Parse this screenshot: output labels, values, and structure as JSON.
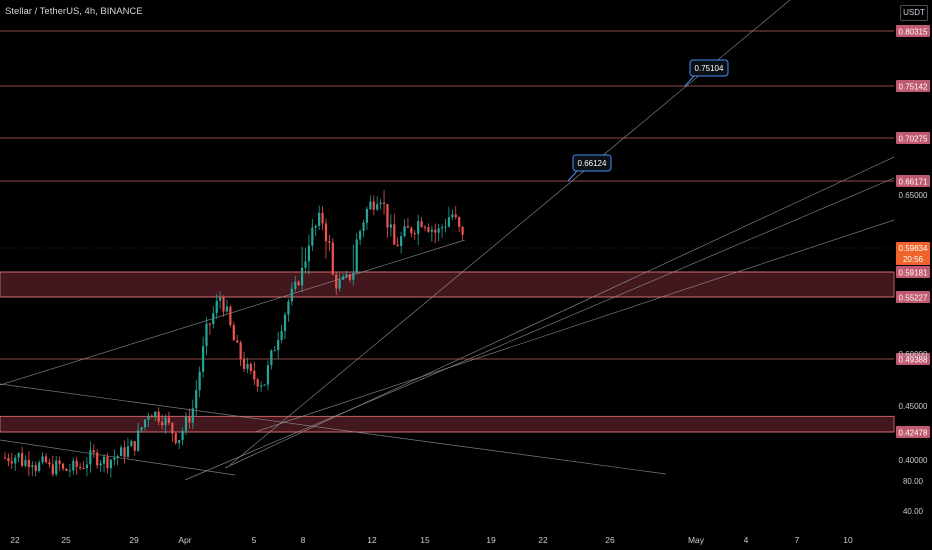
{
  "header": {
    "title": "Stellar / TetherUS, 4h, BINANCE",
    "unit": "USDT"
  },
  "colors": {
    "background": "#000000",
    "bull": "#26a69a",
    "bear": "#ef5350",
    "level_line": "#e57373",
    "zone_fill": "#5a1f28",
    "level_badge": "#c05a70",
    "current_badge": "#f0632a",
    "callout_border": "#4a8ef7",
    "trendline": "#9a9a9a"
  },
  "chart_data": {
    "type": "candlestick",
    "symbol": "Stellar / TetherUS",
    "interval": "4h",
    "exchange": "BINANCE",
    "quote": "USDT",
    "y_ticks": [
      "0.65000",
      "0.60000",
      "0.45000",
      "0.40000",
      "80.00",
      "40.00"
    ],
    "x_ticks": [
      "22",
      "25",
      "29",
      "Apr",
      "5",
      "8",
      "12",
      "15",
      "19",
      "22",
      "26",
      "May",
      "4",
      "7",
      "10"
    ],
    "horizontal_levels": [
      "0.80315",
      "0.75142",
      "0.70275",
      "0.66171",
      "0.59181",
      "0.55227",
      "0.49388",
      "0.42478"
    ],
    "zones": [
      {
        "from": 0.55227,
        "to": 0.59181
      },
      {
        "from": 0.42478,
        "to": 0.44
      }
    ],
    "current_price": "0.59834",
    "countdown": "20:56",
    "callouts": [
      "0.75104",
      "0.66124"
    ],
    "trend": [
      [
        0.402,
        0.404
      ],
      [
        0.398,
        0.401
      ],
      [
        0.394,
        0.398
      ],
      [
        0.392,
        0.396
      ],
      [
        0.39,
        0.394
      ],
      [
        0.391,
        0.403
      ],
      [
        0.404,
        0.399
      ],
      [
        0.399,
        0.405
      ],
      [
        0.405,
        0.414
      ],
      [
        0.414,
        0.446
      ],
      [
        0.446,
        0.438
      ],
      [
        0.438,
        0.418
      ],
      [
        0.418,
        0.445
      ],
      [
        0.445,
        0.52
      ],
      [
        0.52,
        0.555
      ],
      [
        0.555,
        0.505
      ],
      [
        0.505,
        0.478
      ],
      [
        0.478,
        0.472
      ],
      [
        0.472,
        0.52
      ],
      [
        0.52,
        0.562
      ],
      [
        0.562,
        0.605
      ],
      [
        0.605,
        0.628
      ],
      [
        0.628,
        0.572
      ],
      [
        0.572,
        0.585
      ],
      [
        0.585,
        0.632
      ],
      [
        0.632,
        0.655
      ],
      [
        0.655,
        0.6
      ],
      [
        0.6,
        0.615
      ],
      [
        0.615,
        0.628
      ],
      [
        0.628,
        0.612
      ],
      [
        0.612,
        0.633
      ],
      [
        0.633,
        0.598
      ]
    ]
  }
}
